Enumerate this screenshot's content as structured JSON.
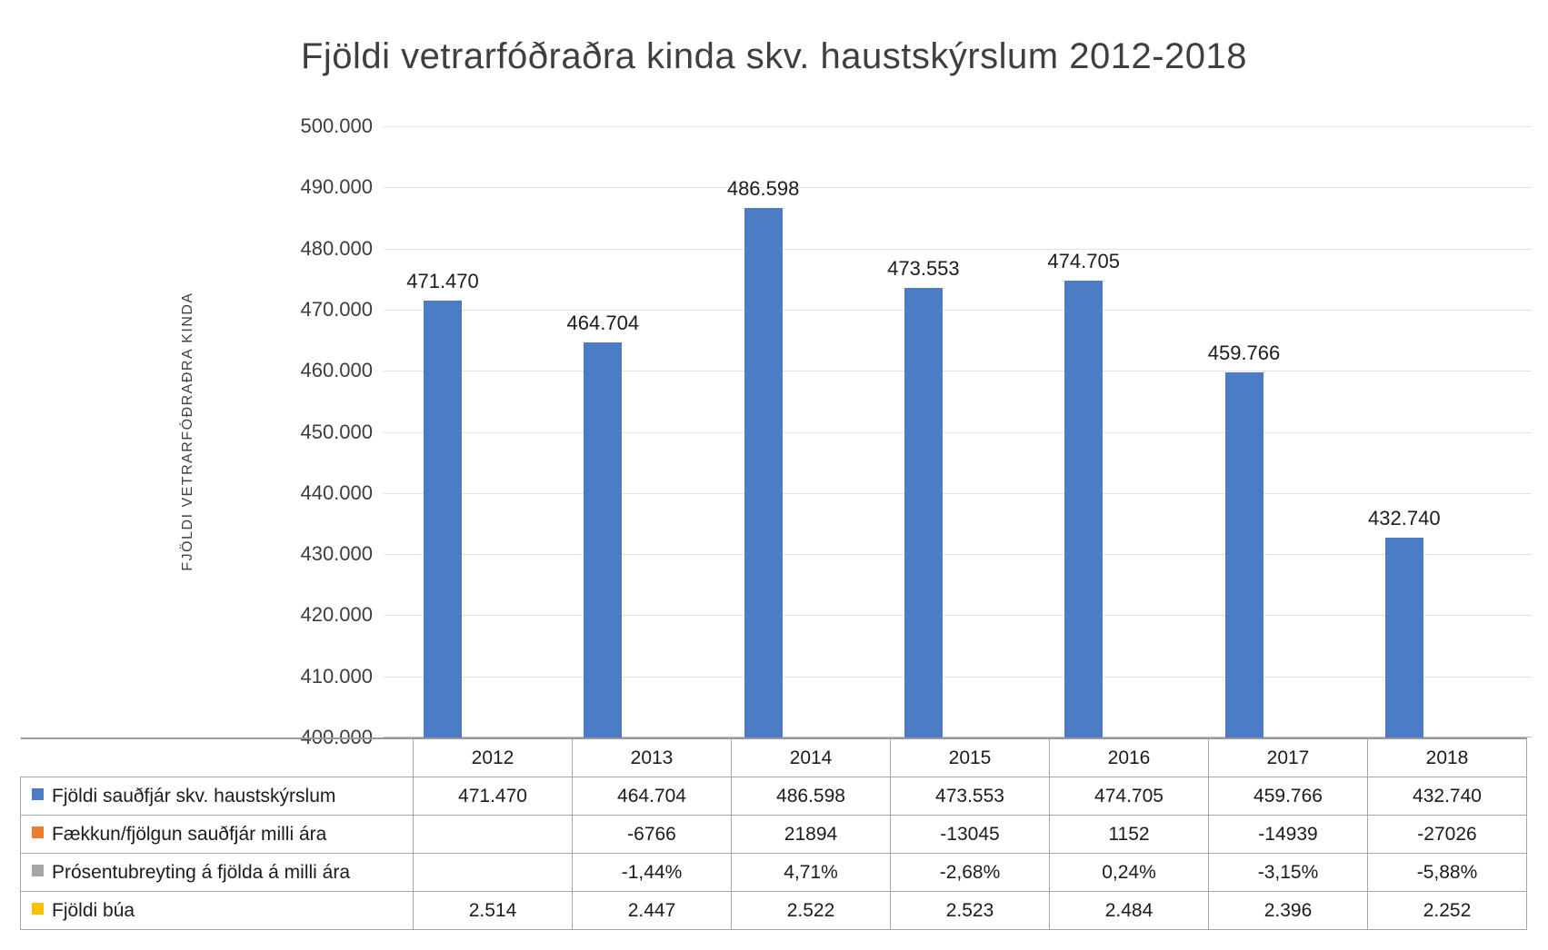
{
  "chart_data": {
    "type": "bar",
    "title": "Fjöldi vetrarfóðraðra kinda skv. haustskýrslum 2012-2018",
    "ylabel": "FJÖLDI VETRARFÓÐRAÐRA KINDA",
    "xlabel": "",
    "ylim": [
      400000,
      500000
    ],
    "y_tick_step": 10000,
    "grid": true,
    "legend_position": "table-left",
    "y_ticks": [
      "500.000",
      "490.000",
      "480.000",
      "470.000",
      "460.000",
      "450.000",
      "440.000",
      "430.000",
      "420.000",
      "410.000",
      "400.000"
    ],
    "categories": [
      "2012",
      "2013",
      "2014",
      "2015",
      "2016",
      "2017",
      "2018"
    ],
    "series": [
      {
        "name": "Fjöldi sauðfjár skv. haustskýrslum",
        "color": "#4c7cc6",
        "plotted_as_bars": true,
        "values": [
          471470,
          464704,
          486598,
          473553,
          474705,
          459766,
          432740
        ],
        "display": [
          "471.470",
          "464.704",
          "486.598",
          "473.553",
          "474.705",
          "459.766",
          "432.740"
        ]
      },
      {
        "name": "Fækkun/fjölgun sauðfjár milli ára",
        "color": "#ed7d31",
        "plotted_as_bars": false,
        "values": [
          null,
          -6766,
          21894,
          -13045,
          1152,
          -14939,
          -27026
        ],
        "display": [
          "",
          "-6766",
          "21894",
          "-13045",
          "1152",
          "-14939",
          "-27026"
        ]
      },
      {
        "name": "Prósentubreyting á fjölda á milli ára",
        "color": "#a5a5a5",
        "plotted_as_bars": false,
        "values": [
          null,
          -1.44,
          4.71,
          -2.68,
          0.24,
          -3.15,
          -5.88
        ],
        "display": [
          "",
          "-1,44%",
          "4,71%",
          "-2,68%",
          "0,24%",
          "-3,15%",
          "-5,88%"
        ]
      },
      {
        "name": "Fjöldi búa",
        "color": "#ffc000",
        "plotted_as_bars": false,
        "values": [
          2514,
          2447,
          2522,
          2523,
          2484,
          2396,
          2252
        ],
        "display": [
          "2.514",
          "2.447",
          "2.522",
          "2.523",
          "2.484",
          "2.396",
          "2.252"
        ]
      }
    ],
    "colors": {
      "bar": "#4c7cc6",
      "gridline": "#e2e2e2",
      "table_border": "#a6a6a6",
      "text": "#1c1c1c"
    }
  }
}
